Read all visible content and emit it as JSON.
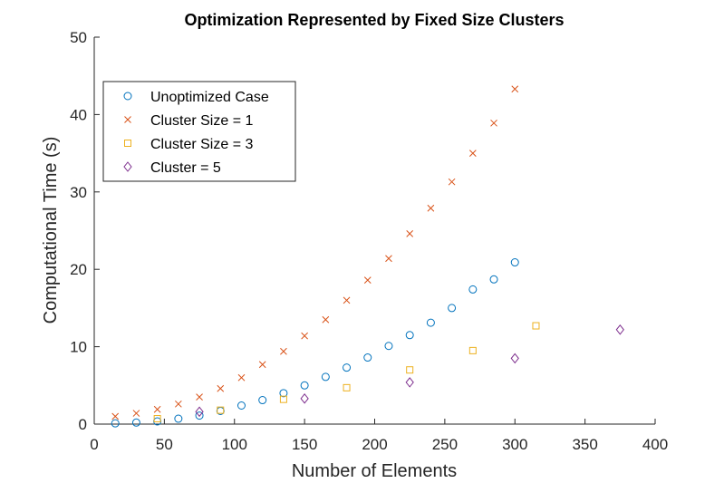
{
  "chart_data": {
    "type": "scatter",
    "title": "Optimization Represented by Fixed Size Clusters",
    "xlabel": "Number of Elements",
    "ylabel": "Computational Time (s)",
    "xlim": [
      0,
      400
    ],
    "ylim": [
      0,
      50
    ],
    "xticks": [
      0,
      50,
      100,
      150,
      200,
      250,
      300,
      350,
      400
    ],
    "yticks": [
      0,
      10,
      20,
      30,
      40,
      50
    ],
    "grid": false,
    "legend_position": "top-left",
    "series": [
      {
        "name": "Unoptimized Case",
        "marker": "circle",
        "color": "#0072BD",
        "x": [
          15,
          30,
          45,
          60,
          75,
          90,
          105,
          120,
          135,
          150,
          165,
          180,
          195,
          210,
          225,
          240,
          255,
          270,
          285,
          300
        ],
        "y": [
          0.1,
          0.2,
          0.35,
          0.7,
          1.1,
          1.7,
          2.4,
          3.1,
          4.0,
          5.0,
          6.1,
          7.3,
          8.6,
          10.1,
          11.5,
          13.1,
          15.0,
          17.4,
          18.7,
          20.9
        ]
      },
      {
        "name": "Cluster Size = 1",
        "marker": "x",
        "color": "#D95319",
        "x": [
          15,
          30,
          45,
          60,
          75,
          90,
          105,
          120,
          135,
          150,
          165,
          180,
          195,
          210,
          225,
          240,
          255,
          270,
          285,
          300
        ],
        "y": [
          1.0,
          1.4,
          1.9,
          2.6,
          3.5,
          4.6,
          6.0,
          7.7,
          9.4,
          11.4,
          13.5,
          16.0,
          18.6,
          21.4,
          24.6,
          27.9,
          31.3,
          35.0,
          38.9,
          43.3
        ]
      },
      {
        "name": "Cluster Size = 3",
        "marker": "square",
        "color": "#EDB120",
        "x": [
          45,
          90,
          135,
          180,
          225,
          270,
          315
        ],
        "y": [
          0.7,
          1.8,
          3.2,
          4.7,
          7.0,
          9.5,
          12.7
        ]
      },
      {
        "name": "Cluster = 5",
        "marker": "diamond",
        "color": "#7E2F8E",
        "x": [
          75,
          150,
          225,
          300,
          375
        ],
        "y": [
          1.6,
          3.3,
          5.4,
          8.5,
          12.2
        ]
      }
    ]
  }
}
